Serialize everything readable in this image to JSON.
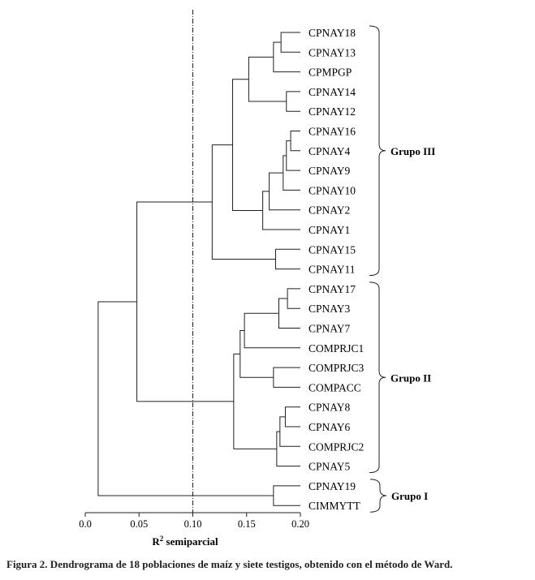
{
  "chart_data": {
    "type": "dendrogram",
    "caption": "Figura 2. Dendrograma de 18 poblaciones de maíz y siete testigos, obtenido con el método de Ward.",
    "xlabel": "R",
    "xlabel_sup": "2",
    "xlabel_rest": " semiparcial",
    "xlim": [
      0.0,
      0.2
    ],
    "xticks": [
      "0.0",
      "0.05",
      "0.10",
      "0.15",
      "0.20"
    ],
    "cut_line": 0.1,
    "leaves": [
      "CPNAY18",
      "CPNAY13",
      "CPMPGP",
      "CPNAY14",
      "CPNAY12",
      "CPNAY16",
      "CPNAY4",
      "CPNAY9",
      "CPNAY10",
      "CPNAY2",
      "CPNAY1",
      "CPNAY15",
      "CPNAY11",
      "CPNAY17",
      "CPNAY3",
      "CPNAY7",
      "COMPRJC1",
      "COMPRJC3",
      "COMPACC",
      "CPNAY8",
      "CPNAY6",
      "COMPRJC2",
      "CPNAY5",
      "CPNAY19",
      "CIMMYTT"
    ],
    "merges": [
      {
        "id": "m1",
        "a": "CPNAY18",
        "b": "CPNAY13",
        "height": 0.182
      },
      {
        "id": "m2",
        "a": "m1",
        "b": "CPMPGP",
        "height": 0.175
      },
      {
        "id": "m3",
        "a": "CPNAY14",
        "b": "CPNAY12",
        "height": 0.187
      },
      {
        "id": "m4",
        "a": "m2",
        "b": "m3",
        "height": 0.152
      },
      {
        "id": "m5",
        "a": "CPNAY16",
        "b": "CPNAY4",
        "height": 0.191
      },
      {
        "id": "m6",
        "a": "m5",
        "b": "CPNAY9",
        "height": 0.187
      },
      {
        "id": "m7",
        "a": "m6",
        "b": "CPNAY10",
        "height": 0.184
      },
      {
        "id": "m8",
        "a": "m7",
        "b": "CPNAY2",
        "height": 0.171
      },
      {
        "id": "m9",
        "a": "m8",
        "b": "CPNAY1",
        "height": 0.165
      },
      {
        "id": "m10",
        "a": "m4",
        "b": "m9",
        "height": 0.137
      },
      {
        "id": "m11",
        "a": "CPNAY15",
        "b": "CPNAY11",
        "height": 0.177
      },
      {
        "id": "m12",
        "a": "m10",
        "b": "m11",
        "height": 0.118
      },
      {
        "id": "m13",
        "a": "CPNAY17",
        "b": "CPNAY3",
        "height": 0.188
      },
      {
        "id": "m14",
        "a": "m13",
        "b": "CPNAY7",
        "height": 0.18
      },
      {
        "id": "m15",
        "a": "m14",
        "b": "COMPRJC1",
        "height": 0.148
      },
      {
        "id": "m16",
        "a": "COMPRJC3",
        "b": "COMPACC",
        "height": 0.175
      },
      {
        "id": "m17",
        "a": "m15",
        "b": "m16",
        "height": 0.144
      },
      {
        "id": "m18",
        "a": "CPNAY8",
        "b": "CPNAY6",
        "height": 0.186
      },
      {
        "id": "m19",
        "a": "m18",
        "b": "COMPRJC2",
        "height": 0.181
      },
      {
        "id": "m20",
        "a": "m19",
        "b": "CPNAY5",
        "height": 0.178
      },
      {
        "id": "m21",
        "a": "m17",
        "b": "m20",
        "height": 0.138
      },
      {
        "id": "m22",
        "a": "m12",
        "b": "m21",
        "height": 0.048
      },
      {
        "id": "m23",
        "a": "CPNAY19",
        "b": "CIMMYTT",
        "height": 0.175
      },
      {
        "id": "m24",
        "a": "m22",
        "b": "m23",
        "height": 0.012
      }
    ],
    "groups": [
      {
        "label": "Grupo III",
        "from": "CPNAY18",
        "to": "CPNAY11"
      },
      {
        "label": "Grupo II",
        "from": "CPNAY17",
        "to": "CPNAY5"
      },
      {
        "label": "Grupo I",
        "from": "CPNAY19",
        "to": "CIMMYTT"
      }
    ]
  }
}
